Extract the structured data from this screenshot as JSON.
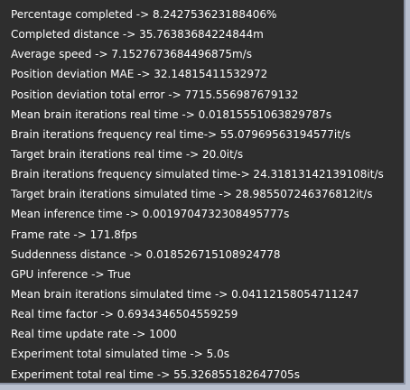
{
  "colors": {
    "panel_background": "#2e2e2e",
    "text": "#ffffff",
    "page_background": "#b9c0cf"
  },
  "stats": [
    "Percentage completed -> 8.242753623188406%",
    "Completed distance -> 35.76383684224844m",
    "Average speed -> 7.1527673684496875m/s",
    "Position deviation MAE -> 32.14815411532972",
    "Position deviation total error -> 7715.556987679132",
    "Mean brain iterations real time -> 0.01815551063829787s",
    "Brain iterations frequency real time-> 55.07969563194577it/s",
    "Target brain iterations real time -> 20.0it/s",
    "Brain iterations frequency simulated time-> 24.31813142139108it/s",
    "Target brain iterations simulated time -> 28.985507246376812it/s",
    "Mean inference time -> 0.0019704732308495777s",
    "Frame rate -> 171.8fps",
    "Suddenness distance -> 0.018526715108924778",
    "GPU inference -> True",
    "Mean brain iterations simulated time -> 0.04112158054711247",
    "Real time factor -> 0.6934346504559259",
    "Real time update rate -> 1000",
    "Experiment total simulated time -> 5.0s",
    "Experiment total real time -> 55.326855182647705s"
  ]
}
